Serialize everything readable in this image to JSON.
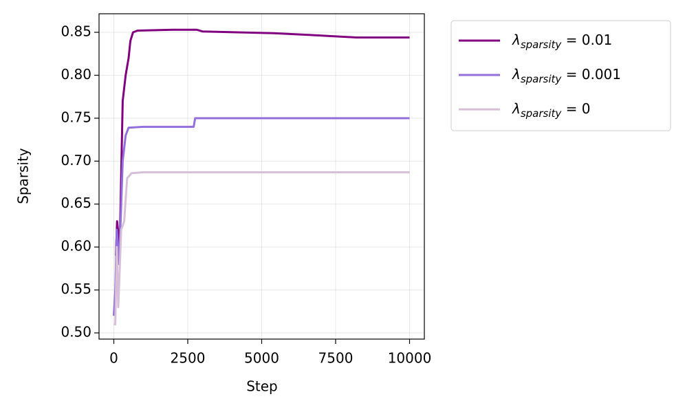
{
  "chart_data": {
    "type": "line",
    "x_label": "Step",
    "y_label": "Sparsity",
    "xlim": [
      -500,
      10500
    ],
    "ylim": [
      0.4928,
      0.8716
    ],
    "xticks": [
      0,
      2500,
      5000,
      7500,
      10000
    ],
    "yticks": [
      {
        "value": 0.5,
        "label": "0.50"
      },
      0.55,
      {
        "value": 0.6,
        "label": "0.60"
      },
      0.65,
      {
        "value": 0.7,
        "label": "0.70"
      },
      0.75,
      {
        "value": 0.8,
        "label": "0.80"
      },
      0.85
    ],
    "grid": true,
    "legend": "outside",
    "series": [
      {
        "name": "λsparsity = 0.01",
        "color": "#800080",
        "x": [
          70,
          110,
          140,
          200,
          300,
          400,
          450,
          500,
          560,
          650,
          800,
          2000,
          2800,
          3000,
          5400,
          6600,
          8200,
          10000
        ],
        "values": [
          0.59,
          0.63,
          0.62,
          0.6,
          0.77,
          0.8,
          0.81,
          0.82,
          0.84,
          0.85,
          0.852,
          0.853,
          0.853,
          0.851,
          0.849,
          0.847,
          0.844,
          0.844
        ]
      },
      {
        "name": "λsparsity = 0.001",
        "color": "#9370db",
        "x": [
          0,
          50,
          100,
          180,
          300,
          400,
          500,
          1000,
          2700,
          2750,
          10000
        ],
        "values": [
          0.52,
          0.55,
          0.62,
          0.58,
          0.7,
          0.73,
          0.739,
          0.74,
          0.74,
          0.75,
          0.75
        ]
      },
      {
        "name": "λsparsity = 0",
        "color": "#d8bfd8",
        "x": [
          0,
          50,
          100,
          150,
          250,
          350,
          450,
          600,
          1000,
          10000
        ],
        "values": [
          0.51,
          0.51,
          0.6,
          0.53,
          0.62,
          0.63,
          0.68,
          0.686,
          0.687,
          0.687
        ]
      }
    ]
  }
}
